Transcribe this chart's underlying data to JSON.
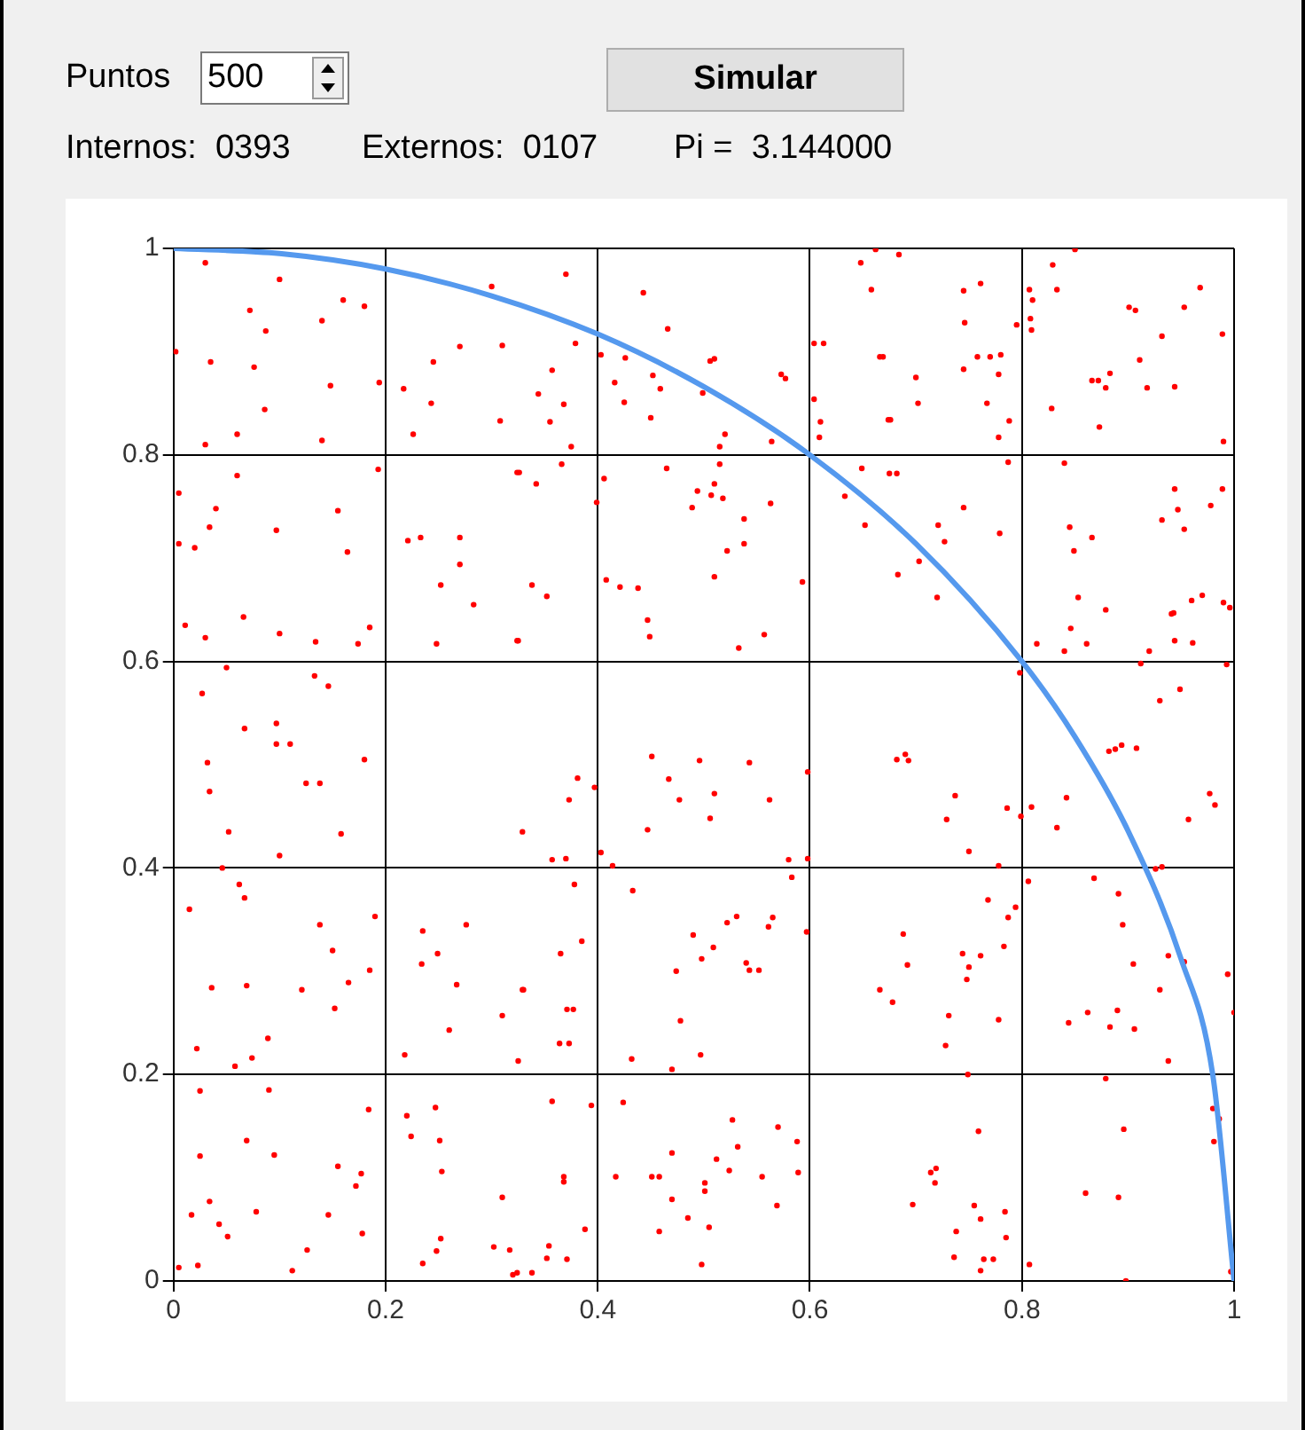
{
  "chart_data": {
    "type": "scatter",
    "annotations": [
      "Puntos",
      "500",
      "Simular",
      "Internos:  0393",
      "Externos:  0107",
      "Pi =  3.144000"
    ],
    "xlim": [
      0,
      1
    ],
    "ylim": [
      0,
      1
    ],
    "xticks": [
      0,
      0.2,
      0.4,
      0.6,
      0.8,
      1
    ],
    "yticks": [
      0,
      0.2,
      0.4,
      0.6,
      0.8,
      1
    ],
    "grid": true,
    "marker": "circle",
    "series": [
      {
        "type": "scatter",
        "color": "#ff0000",
        "x": [
          0.03,
          0.1,
          0.072,
          0.087,
          0.14,
          0.16,
          0.18,
          0.002,
          0.035,
          0.076,
          0.148,
          0.086,
          0.06,
          0.14,
          0.03,
          0.194,
          0.27,
          0.31,
          0.245,
          0.217,
          0.243,
          0.308,
          0.226,
          0.3,
          0.06,
          0.005,
          0.04,
          0.034,
          0.005,
          0.02,
          0.097,
          0.155,
          0.164,
          0.011,
          0.066,
          0.03,
          0.1,
          0.134,
          0.174,
          0.185,
          0.193,
          0.221,
          0.233,
          0.27,
          0.27,
          0.252,
          0.283,
          0.324,
          0.248,
          0.324,
          0.05,
          0.027,
          0.067,
          0.097,
          0.097,
          0.11,
          0.032,
          0.133,
          0.146,
          0.18,
          0.034,
          0.052,
          0.125,
          0.138,
          0.158,
          0.1,
          0.046,
          0.062,
          0.067,
          0.015,
          0.138,
          0.15,
          0.19,
          0.036,
          0.069,
          0.121,
          0.165,
          0.185,
          0.152,
          0.089,
          0.022,
          0.074,
          0.058,
          0.235,
          0.249,
          0.234,
          0.267,
          0.31,
          0.26,
          0.218,
          0.276,
          0.329,
          0.025,
          0.09,
          0.069,
          0.025,
          0.095,
          0.034,
          0.017,
          0.043,
          0.051,
          0.078,
          0.146,
          0.155,
          0.177,
          0.172,
          0.178,
          0.126,
          0.005,
          0.023,
          0.112,
          0.184,
          0.22,
          0.247,
          0.224,
          0.251,
          0.253,
          0.31,
          0.252,
          0.248,
          0.302,
          0.317,
          0.235,
          0.32,
          0.37,
          0.379,
          0.357,
          0.344,
          0.368,
          0.355,
          0.375,
          0.443,
          0.466,
          0.403,
          0.426,
          0.452,
          0.416,
          0.459,
          0.425,
          0.45,
          0.499,
          0.506,
          0.51,
          0.52,
          0.515,
          0.564,
          0.573,
          0.577,
          0.648,
          0.662,
          0.658,
          0.604,
          0.613,
          0.666,
          0.604,
          0.61,
          0.609,
          0.674,
          0.366,
          0.342,
          0.326,
          0.338,
          0.352,
          0.325,
          0.465,
          0.515,
          0.406,
          0.494,
          0.51,
          0.507,
          0.518,
          0.489,
          0.538,
          0.538,
          0.522,
          0.563,
          0.51,
          0.408,
          0.421,
          0.438,
          0.593,
          0.447,
          0.449,
          0.557,
          0.533,
          0.399,
          0.684,
          0.745,
          0.761,
          0.746,
          0.795,
          0.669,
          0.758,
          0.77,
          0.78,
          0.745,
          0.778,
          0.7,
          0.702,
          0.767,
          0.676,
          0.788,
          0.778,
          0.85,
          0.829,
          0.833,
          0.807,
          0.81,
          0.808,
          0.809,
          0.901,
          0.907,
          0.953,
          0.968,
          0.932,
          0.989,
          0.911,
          0.866,
          0.872,
          0.883,
          0.879,
          0.918,
          0.944,
          0.828,
          0.873,
          0.99,
          0.675,
          0.682,
          0.787,
          0.745,
          0.721,
          0.727,
          0.703,
          0.683,
          0.72,
          0.779,
          0.649,
          0.633,
          0.652,
          0.84,
          0.944,
          0.947,
          0.989,
          0.978,
          0.932,
          0.953,
          0.845,
          0.866,
          0.849,
          0.853,
          0.879,
          0.846,
          0.814,
          0.84,
          0.861,
          0.941,
          0.943,
          0.96,
          0.97,
          0.99,
          0.996,
          0.944,
          0.961,
          0.92,
          0.912,
          0.993,
          0.949,
          0.93,
          0.882,
          0.888,
          0.894,
          0.908,
          0.798,
          0.69,
          0.682,
          0.451,
          0.496,
          0.543,
          0.467,
          0.477,
          0.51,
          0.506,
          0.562,
          0.447,
          0.403,
          0.414,
          0.58,
          0.598,
          0.598,
          0.381,
          0.373,
          0.397,
          0.329,
          0.357,
          0.37,
          0.433,
          0.49,
          0.522,
          0.531,
          0.561,
          0.565,
          0.509,
          0.498,
          0.474,
          0.54,
          0.543,
          0.552,
          0.478,
          0.432,
          0.47,
          0.497,
          0.583,
          0.597,
          0.378,
          0.385,
          0.365,
          0.33,
          0.371,
          0.377,
          0.364,
          0.373,
          0.325,
          0.424,
          0.527,
          0.57,
          0.588,
          0.532,
          0.47,
          0.512,
          0.524,
          0.417,
          0.451,
          0.458,
          0.555,
          0.589,
          0.501,
          0.501,
          0.47,
          0.569,
          0.485,
          0.505,
          0.458,
          0.498,
          0.357,
          0.394,
          0.368,
          0.368,
          0.388,
          0.354,
          0.352,
          0.371,
          0.338,
          0.324,
          0.737,
          0.729,
          0.786,
          0.75,
          0.778,
          0.693,
          0.799,
          0.842,
          0.809,
          0.833,
          0.977,
          0.982,
          0.957,
          0.932,
          0.926,
          0.768,
          0.794,
          0.787,
          0.688,
          0.783,
          0.744,
          0.761,
          0.75,
          0.748,
          0.692,
          0.666,
          0.678,
          0.731,
          0.778,
          0.728,
          0.749,
          0.806,
          0.868,
          0.891,
          0.895,
          0.905,
          0.938,
          0.953,
          0.994,
          0.93,
          1,
          0.862,
          0.844,
          0.89,
          0.883,
          0.906,
          0.938,
          0.759,
          0.714,
          0.719,
          0.718,
          0.697,
          0.755,
          0.761,
          0.784,
          0.738,
          0.785,
          0.736,
          0.764,
          0.773,
          0.761,
          0.879,
          0.98,
          0.986,
          0.981,
          0.896,
          0.86,
          0.891,
          0.807,
          0.898,
          0.997
        ],
        "values": [
          0.986,
          0.97,
          0.94,
          0.92,
          0.93,
          0.95,
          0.944,
          0.9,
          0.89,
          0.885,
          0.867,
          0.844,
          0.82,
          0.814,
          0.81,
          0.87,
          0.905,
          0.906,
          0.89,
          0.864,
          0.85,
          0.833,
          0.82,
          0.963,
          0.78,
          0.763,
          0.748,
          0.73,
          0.714,
          0.71,
          0.727,
          0.746,
          0.706,
          0.635,
          0.643,
          0.623,
          0.627,
          0.619,
          0.617,
          0.633,
          0.786,
          0.717,
          0.72,
          0.72,
          0.694,
          0.674,
          0.655,
          0.783,
          0.617,
          0.62,
          0.594,
          0.569,
          0.535,
          0.54,
          0.52,
          0.52,
          0.502,
          0.586,
          0.576,
          0.505,
          0.474,
          0.435,
          0.482,
          0.482,
          0.433,
          0.412,
          0.4,
          0.384,
          0.371,
          0.36,
          0.345,
          0.32,
          0.353,
          0.284,
          0.286,
          0.282,
          0.289,
          0.301,
          0.264,
          0.235,
          0.225,
          0.216,
          0.208,
          0.339,
          0.317,
          0.307,
          0.287,
          0.257,
          0.243,
          0.219,
          0.345,
          0.282,
          0.184,
          0.185,
          0.136,
          0.121,
          0.122,
          0.077,
          0.064,
          0.055,
          0.043,
          0.067,
          0.064,
          0.111,
          0.104,
          0.092,
          0.046,
          0.03,
          0.013,
          0.015,
          0.01,
          0.166,
          0.16,
          0.168,
          0.14,
          0.136,
          0.106,
          0.081,
          0.041,
          0.029,
          0.033,
          0.03,
          0.017,
          0.006,
          0.975,
          0.908,
          0.882,
          0.859,
          0.849,
          0.832,
          0.808,
          0.957,
          0.922,
          0.897,
          0.894,
          0.877,
          0.87,
          0.864,
          0.851,
          0.836,
          0.86,
          0.891,
          0.893,
          0.82,
          0.808,
          0.813,
          0.878,
          0.874,
          0.986,
          0.999,
          0.96,
          0.908,
          0.908,
          0.895,
          0.854,
          0.832,
          0.817,
          0.834,
          0.791,
          0.772,
          0.783,
          0.674,
          0.663,
          0.62,
          0.787,
          0.791,
          0.777,
          0.765,
          0.772,
          0.761,
          0.758,
          0.749,
          0.738,
          0.714,
          0.707,
          0.753,
          0.682,
          0.679,
          0.672,
          0.671,
          0.677,
          0.64,
          0.624,
          0.626,
          0.613,
          0.754,
          0.994,
          0.959,
          0.966,
          0.928,
          0.926,
          0.895,
          0.895,
          0.895,
          0.897,
          0.883,
          0.878,
          0.875,
          0.85,
          0.85,
          0.834,
          0.833,
          0.817,
          0.999,
          0.984,
          0.96,
          0.96,
          0.95,
          0.932,
          0.921,
          0.943,
          0.94,
          0.943,
          0.962,
          0.915,
          0.917,
          0.892,
          0.872,
          0.872,
          0.879,
          0.865,
          0.865,
          0.866,
          0.845,
          0.827,
          0.813,
          0.782,
          0.782,
          0.793,
          0.749,
          0.732,
          0.716,
          0.697,
          0.684,
          0.662,
          0.724,
          0.787,
          0.76,
          0.732,
          0.792,
          0.767,
          0.747,
          0.767,
          0.751,
          0.737,
          0.728,
          0.73,
          0.72,
          0.707,
          0.662,
          0.65,
          0.632,
          0.617,
          0.61,
          0.617,
          0.646,
          0.647,
          0.659,
          0.664,
          0.657,
          0.652,
          0.62,
          0.618,
          0.61,
          0.598,
          0.597,
          0.573,
          0.562,
          0.513,
          0.515,
          0.519,
          0.516,
          0.589,
          0.51,
          0.505,
          0.508,
          0.504,
          0.502,
          0.486,
          0.466,
          0.472,
          0.448,
          0.466,
          0.437,
          0.415,
          0.402,
          0.408,
          0.493,
          0.409,
          0.487,
          0.466,
          0.478,
          0.435,
          0.408,
          0.409,
          0.378,
          0.335,
          0.347,
          0.353,
          0.343,
          0.352,
          0.323,
          0.312,
          0.3,
          0.308,
          0.301,
          0.301,
          0.252,
          0.215,
          0.205,
          0.219,
          0.391,
          0.338,
          0.384,
          0.329,
          0.317,
          0.282,
          0.263,
          0.263,
          0.23,
          0.23,
          0.213,
          0.173,
          0.156,
          0.149,
          0.135,
          0.13,
          0.124,
          0.118,
          0.107,
          0.101,
          0.101,
          0.101,
          0.101,
          0.105,
          0.095,
          0.087,
          0.079,
          0.073,
          0.061,
          0.052,
          0.048,
          0.016,
          0.174,
          0.17,
          0.101,
          0.096,
          0.05,
          0.034,
          0.022,
          0.021,
          0.008,
          0.008,
          0.47,
          0.447,
          0.458,
          0.416,
          0.402,
          0.504,
          0.45,
          0.468,
          0.459,
          0.439,
          0.472,
          0.461,
          0.447,
          0.401,
          0.399,
          0.369,
          0.362,
          0.352,
          0.336,
          0.324,
          0.317,
          0.315,
          0.304,
          0.292,
          0.306,
          0.282,
          0.27,
          0.257,
          0.253,
          0.228,
          0.2,
          0.387,
          0.39,
          0.375,
          0.345,
          0.307,
          0.315,
          0.309,
          0.297,
          0.282,
          0.26,
          0.26,
          0.25,
          0.262,
          0.246,
          0.244,
          0.213,
          0.145,
          0.105,
          0.109,
          0.095,
          0.074,
          0.073,
          0.06,
          0.067,
          0.048,
          0.042,
          0.023,
          0.021,
          0.021,
          0.01,
          0.196,
          0.167,
          0.157,
          0.135,
          0.147,
          0.085,
          0.081,
          0.016,
          0,
          0.009
        ]
      },
      {
        "type": "line",
        "color": "#5599ee",
        "marker": "none",
        "line_style": "solid",
        "x": [
          0,
          0.1,
          0.2,
          0.3,
          0.4,
          0.5,
          0.6,
          0.7,
          0.8,
          0.85,
          0.9,
          0.95,
          0.98,
          1
        ],
        "values": [
          1,
          0.995,
          0.98,
          0.954,
          0.917,
          0.866,
          0.8,
          0.714,
          0.6,
          0.527,
          0.436,
          0.312,
          0.199,
          0
        ]
      }
    ]
  }
}
